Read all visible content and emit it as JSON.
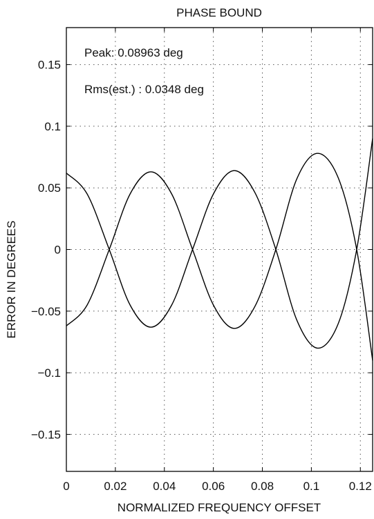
{
  "chart_data": {
    "type": "line",
    "title": "PHASE BOUND",
    "xlabel": "NORMALIZED FREQUENCY OFFSET",
    "ylabel": "ERROR IN DEGREES",
    "xlim": [
      0,
      0.125
    ],
    "ylim": [
      -0.18,
      0.18
    ],
    "grid": true,
    "xticks": [
      0,
      0.02,
      0.04,
      0.06,
      0.08,
      0.1,
      0.12
    ],
    "xtick_labels": [
      "0",
      "0.02",
      "0.04",
      "0.06",
      "0.08",
      "0.1",
      "0.12"
    ],
    "yticks": [
      0.15,
      0.1,
      0.05,
      0,
      -0.05,
      -0.1,
      -0.15
    ],
    "ytick_labels": [
      "0.15",
      "0.1",
      "0.05",
      "0",
      "−0.05",
      "−0.1",
      "−0.15"
    ],
    "annotations": [
      "Peak: 0.08963 deg",
      "Rms(est.) : 0.0348 deg"
    ],
    "series": [
      {
        "x": [
          0,
          0.0085,
          0.0175,
          0.026,
          0.0345,
          0.043,
          0.0515,
          0.06,
          0.0685,
          0.077,
          0.0855,
          0.094,
          0.1025,
          0.111,
          0.1185,
          0.125
        ],
        "y": [
          0.062,
          0.045,
          0.0,
          -0.045,
          -0.063,
          -0.045,
          0.0,
          0.045,
          0.064,
          0.046,
          0.0,
          -0.057,
          -0.08,
          -0.06,
          0.0,
          0.09
        ]
      },
      {
        "x": [
          0,
          0.0085,
          0.0175,
          0.026,
          0.0345,
          0.043,
          0.0515,
          0.06,
          0.0685,
          0.077,
          0.0855,
          0.094,
          0.1025,
          0.111,
          0.1185,
          0.125
        ],
        "y": [
          -0.062,
          -0.045,
          0.0,
          0.045,
          0.063,
          0.045,
          0.0,
          -0.045,
          -0.064,
          -0.046,
          0.0,
          0.057,
          0.078,
          0.058,
          0.0,
          -0.09
        ]
      }
    ]
  }
}
